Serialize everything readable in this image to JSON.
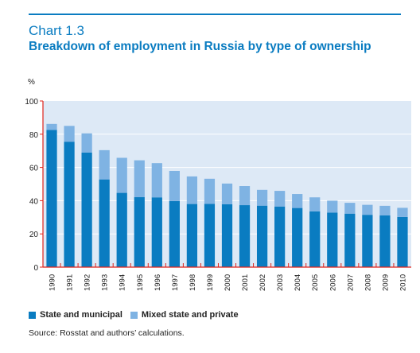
{
  "header": {
    "chart_number": "Chart 1.3",
    "title": "Breakdown of employment in Russia by type of ownership"
  },
  "colors": {
    "accent": "#0a7cc1",
    "plot_bg": "#dde9f6",
    "state": "#0a7cc1",
    "mixed": "#7fb3e3",
    "axis": "#e0231a"
  },
  "chart_data": {
    "type": "bar",
    "stacked": true,
    "title": "Breakdown of employment in Russia by type of ownership",
    "ylabel": "%",
    "ylim": [
      0,
      100
    ],
    "yticks": [
      0,
      20,
      40,
      60,
      80,
      100
    ],
    "grid": true,
    "legend_placement": "bottom",
    "categories": [
      "1990",
      "1991",
      "1992",
      "1993",
      "1994",
      "1995",
      "1996",
      "1997",
      "1998",
      "1999",
      "2000",
      "2001",
      "2002",
      "2003",
      "2004",
      "2005",
      "2006",
      "2007",
      "2008",
      "2009",
      "2010"
    ],
    "series": [
      {
        "name": "State and municipal",
        "values": [
          82.6,
          75.5,
          68.9,
          52.8,
          44.7,
          42.1,
          42.0,
          39.8,
          38.0,
          38.1,
          37.8,
          37.3,
          37.0,
          36.5,
          35.6,
          33.6,
          32.8,
          32.2,
          31.5,
          31.2,
          30.2
        ]
      },
      {
        "name": "Mixed state and private",
        "values": [
          3.6,
          9.5,
          11.6,
          17.6,
          21.1,
          22.2,
          20.6,
          18.1,
          16.6,
          15.1,
          12.5,
          11.5,
          9.5,
          9.4,
          8.4,
          8.4,
          7.2,
          6.5,
          6.0,
          5.7,
          5.5
        ]
      }
    ],
    "source": "Source: Rosstat and authors’ calculations."
  }
}
